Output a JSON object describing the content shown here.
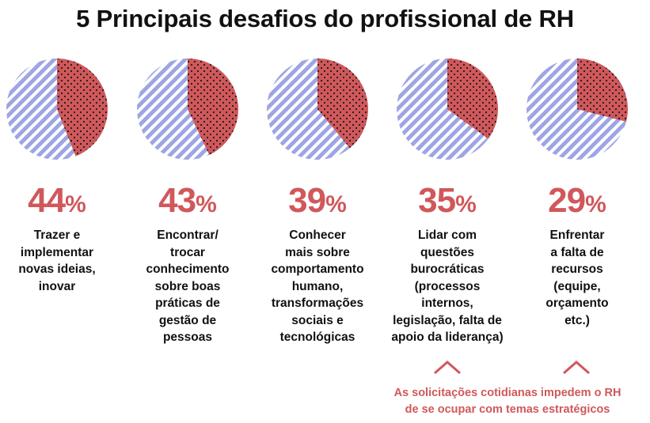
{
  "title": "5 Principais desafios do profissional de RH",
  "colors": {
    "accent": "#d0585b",
    "stripe": "#9ea5e4",
    "text": "#111111"
  },
  "chart_data": {
    "type": "pie",
    "title": "5 Principais desafios do profissional de RH",
    "items": [
      {
        "value": 44,
        "label": "44",
        "unit": "%",
        "desc": [
          "Trazer e",
          "implementar",
          "novas ideias,",
          "inovar"
        ]
      },
      {
        "value": 43,
        "label": "43",
        "unit": "%",
        "desc": [
          "Encontrar/",
          "trocar",
          "conhecimento",
          "sobre boas",
          "práticas de",
          "gestão de",
          "pessoas"
        ]
      },
      {
        "value": 39,
        "label": "39",
        "unit": "%",
        "desc": [
          "Conhecer",
          "mais sobre",
          "comportamento",
          "humano,",
          "transformações",
          "sociais e",
          "tecnológicas"
        ]
      },
      {
        "value": 35,
        "label": "35",
        "unit": "%",
        "desc": [
          "Lidar com",
          "questões",
          "burocráticas",
          "(processos",
          "internos,",
          "legislação, falta de",
          "apoio da liderança)"
        ]
      },
      {
        "value": 29,
        "label": "29",
        "unit": "%",
        "desc": [
          "Enfrentar",
          "a falta de",
          "recursos",
          "(equipe,",
          "orçamento",
          "etc.)"
        ]
      }
    ]
  },
  "note": [
    "As solicitações cotidianas impedem o RH",
    "de se ocupar com temas estratégicos"
  ]
}
